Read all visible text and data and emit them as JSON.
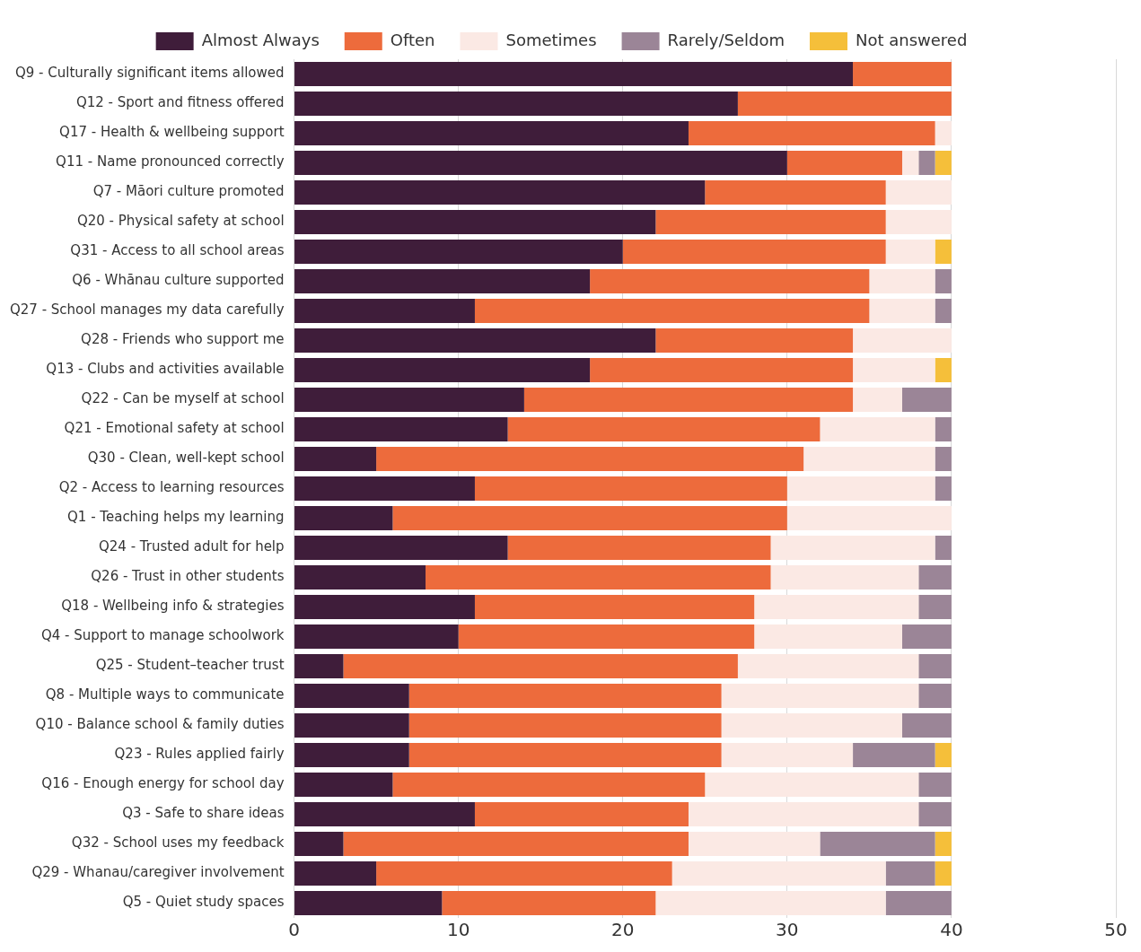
{
  "chart_data": {
    "type": "bar",
    "orientation": "horizontal",
    "stacked": true,
    "legend": "top",
    "grid": "x",
    "categories": [
      "Q9 - Culturally significant items allowed",
      "Q12 - Sport and fitness offered",
      "Q17 - Health & wellbeing support",
      "Q11 - Name pronounced correctly",
      "Q7 - Māori culture promoted",
      "Q20 - Physical safety at school",
      "Q31 - Access to all school areas",
      "Q6 - Whānau culture supported",
      "Q27 - School manages my data carefully",
      "Q28 - Friends who support me",
      "Q13 - Clubs and activities available",
      "Q22 - Can be myself at school",
      "Q21 - Emotional safety at school",
      "Q30 - Clean, well-kept school",
      "Q2 - Access to learning resources",
      "Q1 - Teaching helps my learning",
      "Q24 - Trusted adult for help",
      "Q26 - Trust in other students",
      "Q18 - Wellbeing info & strategies",
      "Q4 - Support to manage schoolwork",
      "Q25 - Student–teacher trust",
      "Q8 - Multiple ways to communicate",
      "Q10 - Balance school & family duties",
      "Q23 - Rules applied fairly",
      "Q16 - Enough energy for school day",
      "Q3 - Safe to share ideas",
      "Q32 - School uses my feedback",
      "Q29 - Whanau/caregiver involvement",
      "Q5 - Quiet study spaces"
    ],
    "series": [
      {
        "name": "Almost Always",
        "color": "#3f1d3a",
        "values": [
          34,
          27,
          24,
          30,
          25,
          22,
          20,
          18,
          11,
          22,
          18,
          14,
          13,
          5,
          11,
          6,
          13,
          8,
          11,
          10,
          3,
          7,
          7,
          7,
          6,
          11,
          3,
          5,
          9
        ]
      },
      {
        "name": "Often",
        "color": "#ed6b3c",
        "values": [
          6,
          13,
          15,
          7,
          11,
          14,
          16,
          17,
          24,
          12,
          16,
          20,
          19,
          26,
          19,
          24,
          16,
          21,
          17,
          18,
          24,
          19,
          19,
          19,
          19,
          13,
          21,
          18,
          13
        ]
      },
      {
        "name": "Sometimes",
        "color": "#fbe9e4",
        "values": [
          0,
          0,
          1,
          1,
          4,
          4,
          3,
          4,
          4,
          6,
          5,
          3,
          7,
          8,
          9,
          10,
          10,
          9,
          10,
          9,
          11,
          12,
          11,
          8,
          13,
          14,
          8,
          13,
          14
        ]
      },
      {
        "name": "Rarely/Seldom",
        "color": "#9b8597",
        "values": [
          0,
          0,
          0,
          1,
          0,
          0,
          0,
          1,
          1,
          0,
          0,
          3,
          1,
          1,
          1,
          0,
          1,
          2,
          2,
          3,
          2,
          2,
          3,
          5,
          2,
          2,
          7,
          3,
          4
        ]
      },
      {
        "name": "Not answered",
        "color": "#f5bf3a",
        "values": [
          0,
          0,
          0,
          1,
          0,
          0,
          1,
          0,
          0,
          0,
          1,
          0,
          0,
          0,
          0,
          0,
          0,
          0,
          0,
          0,
          0,
          0,
          0,
          1,
          0,
          0,
          1,
          1,
          0
        ]
      }
    ],
    "xlim": [
      0,
      50
    ],
    "xticks": [
      0,
      10,
      20,
      30,
      40,
      50
    ]
  }
}
